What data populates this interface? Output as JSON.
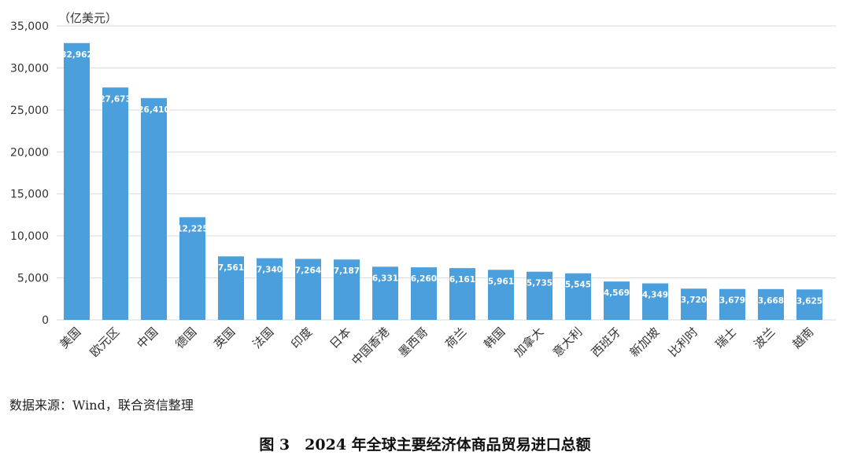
{
  "chart_data": {
    "type": "bar",
    "unit_label": "（亿美元）",
    "categories": [
      "美国",
      "欧元区",
      "中国",
      "德国",
      "英国",
      "法国",
      "印度",
      "日本",
      "中国香港",
      "墨西哥",
      "荷兰",
      "韩国",
      "加拿大",
      "意大利",
      "西班牙",
      "新加坡",
      "比利时",
      "瑞士",
      "波兰",
      "越南"
    ],
    "values": [
      32962,
      27673,
      26410,
      12225,
      7561,
      7340,
      7264,
      7187,
      6331,
      6260,
      6161,
      5961,
      5735,
      5545,
      4569,
      4349,
      3720,
      3679,
      3668,
      3625
    ],
    "data_labels": [
      "32,962",
      "27,673",
      "26,410",
      "12,225",
      "7,561",
      "7,340",
      "7,264",
      "7,187",
      "6,331",
      "6,260",
      "6,161",
      "5,961",
      "5,735",
      "5,545",
      "4,569",
      "4,349",
      "3,720",
      "3,679",
      "3,668",
      "3,625"
    ],
    "ylim": [
      0,
      35000
    ],
    "yticks": [
      0,
      5000,
      10000,
      15000,
      20000,
      25000,
      30000,
      35000
    ],
    "ytick_labels": [
      "0",
      "5,000",
      "10,000",
      "15,000",
      "20,000",
      "25,000",
      "30,000",
      "35,000"
    ],
    "grid": true,
    "bar_color": "#4A9FDC",
    "grid_color": "#D9D9D9"
  },
  "source_text": "数据来源：Wind，联合资信整理",
  "caption": {
    "figure_number": "图 3",
    "title": "2024 年全球主要经济体商品贸易进口总额"
  }
}
